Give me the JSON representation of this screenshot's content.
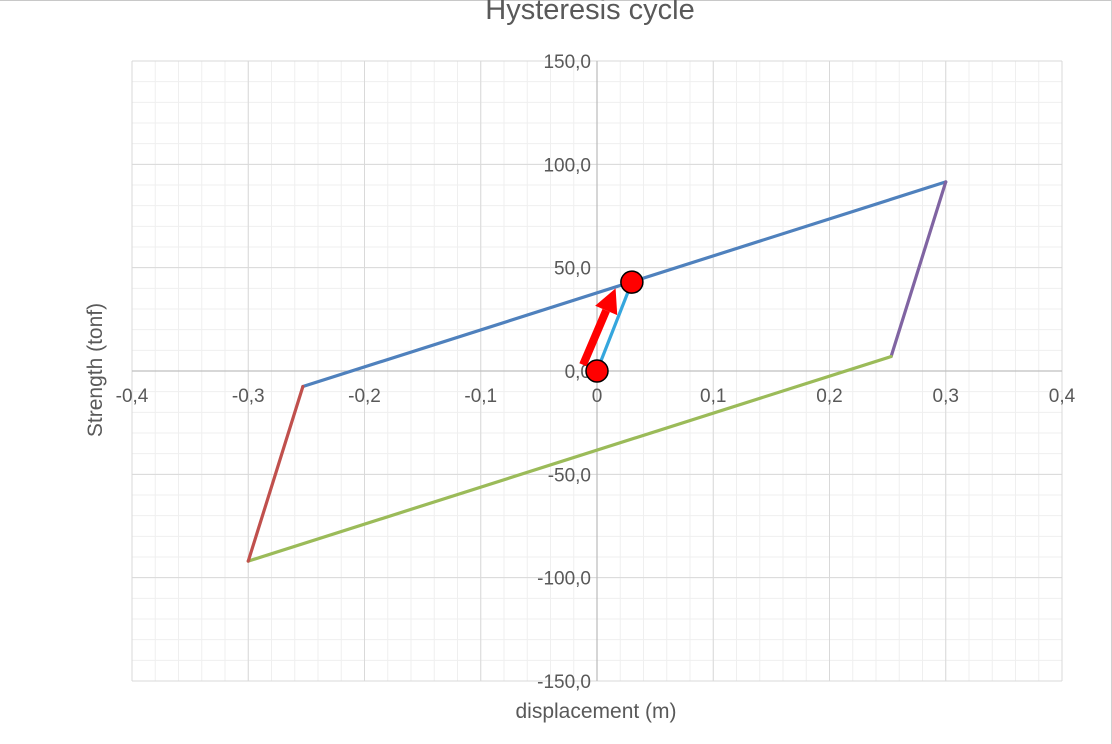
{
  "chart_data": {
    "type": "line",
    "title": "Hysteresis cycle",
    "xlabel": "displacement (m)",
    "ylabel": "Strength (tonf)",
    "xlim": [
      -0.4,
      0.4
    ],
    "ylim": [
      -150,
      150
    ],
    "x_major_step": 0.1,
    "y_major_step": 50,
    "x_minor_step": 0.02,
    "y_minor_step": 10,
    "grid": true,
    "x_tick_labels": [
      "-0,4",
      "-0,3",
      "-0,2",
      "-0,1",
      "0",
      "0,1",
      "0,2",
      "0,3",
      "0,4"
    ],
    "y_tick_labels": [
      "150,0",
      "100,0",
      "50,0",
      "0,0",
      "-50,0",
      "-100,0",
      "-150,0"
    ],
    "series": [
      {
        "color": "#4f81bd",
        "x": [
          -0.253,
          0.3
        ],
        "y": [
          -7.5,
          91.5
        ]
      },
      {
        "color": "#8064a2",
        "x": [
          0.3,
          0.253
        ],
        "y": [
          91.5,
          7
        ]
      },
      {
        "color": "#9bbb59",
        "x": [
          0.253,
          -0.3
        ],
        "y": [
          7,
          -92
        ]
      },
      {
        "color": "#c0504d",
        "x": [
          -0.3,
          -0.253
        ],
        "y": [
          -92,
          -7.5
        ]
      },
      {
        "color": "#35a6dd",
        "x": [
          0,
          0.03
        ],
        "y": [
          0,
          43
        ]
      }
    ],
    "annotations": {
      "arrow": {
        "color": "#ff0000",
        "from": [
          -0.012,
          3
        ],
        "to": [
          0.016,
          40
        ]
      },
      "markers": [
        {
          "color": "#ff0000",
          "x": 0,
          "y": 0
        },
        {
          "color": "#ff0000",
          "x": 0.03,
          "y": 43
        }
      ]
    }
  }
}
